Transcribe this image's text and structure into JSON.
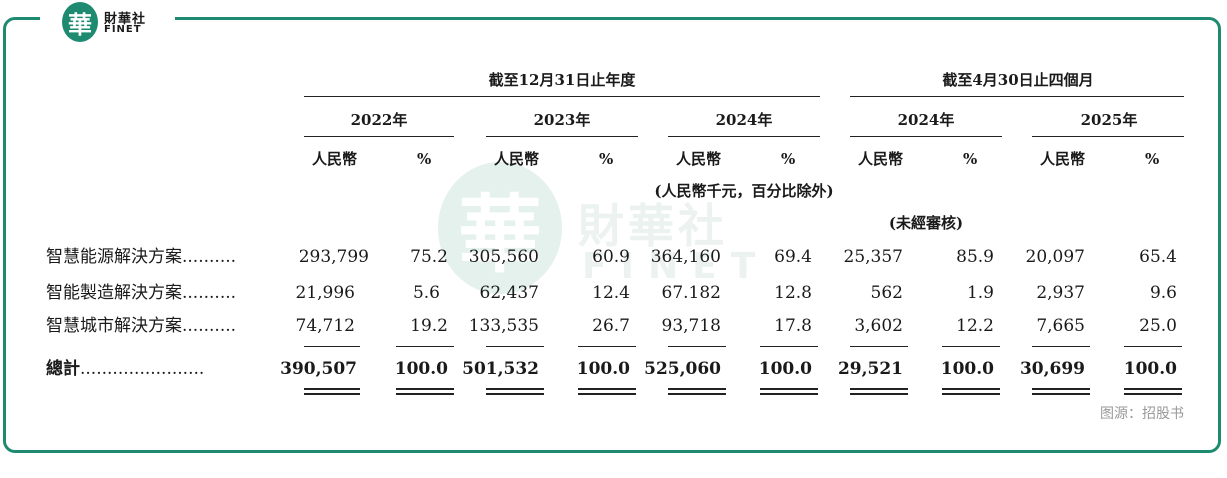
{
  "brand": {
    "emblem_char": "華",
    "name_cn": "財華社",
    "name_en": "FINET",
    "color": "#1e8a70"
  },
  "header": {
    "group_fy": "截至12月31日止年度",
    "group_m4": "截至4月30日止四個月",
    "years": [
      "2022年",
      "2023年",
      "2024年",
      "2024年",
      "2025年"
    ],
    "currency_label": "人民幣",
    "pct_label": "%",
    "unit_note": "(人民幣千元，百分比除外)",
    "unaudited": "(未經審核)"
  },
  "rows": [
    {
      "label": "智慧能源解決方案",
      "cells": [
        "293,799",
        "75.2",
        "305,560",
        "60.9",
        "364,160",
        "69.4",
        "25,357",
        "85.9",
        "20,097",
        "65.4"
      ]
    },
    {
      "label": "智能製造解決方案",
      "cells": [
        "21,996",
        "5.6",
        "62,437",
        "12.4",
        "67.182",
        "12.8",
        "562",
        "1.9",
        "2,937",
        "9.6"
      ]
    },
    {
      "label": "智慧城市解決方案",
      "cells": [
        "74,712",
        "19.2",
        "133,535",
        "26.7",
        "93,718",
        "17.8",
        "3,602",
        "12.2",
        "7,665",
        "25.0"
      ]
    }
  ],
  "total": {
    "label": "總計",
    "cells": [
      "390,507",
      "100.0",
      "501,532",
      "100.0",
      "525,060",
      "100.0",
      "29,521",
      "100.0",
      "30,699",
      "100.0"
    ]
  },
  "source": "图源：招股书"
}
